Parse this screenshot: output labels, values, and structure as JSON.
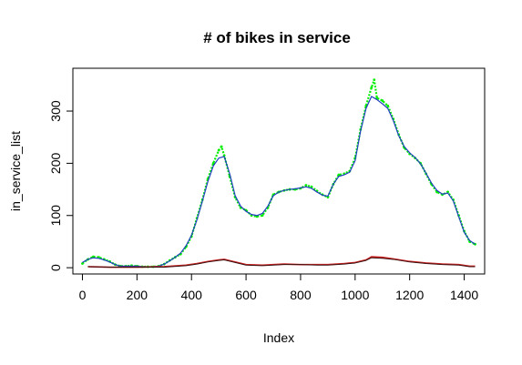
{
  "chart_data": {
    "type": "line",
    "title": "# of bikes in service",
    "xlabel": "Index",
    "ylabel": "in_service_list",
    "xlim": [
      -35,
      1475
    ],
    "ylim": [
      -12,
      382
    ],
    "x_ticks": [
      0,
      200,
      400,
      600,
      800,
      1000,
      1200,
      1400
    ],
    "y_ticks": [
      0,
      100,
      200,
      300
    ],
    "grid": false,
    "legend": "none",
    "colors": {
      "green_series": "#00ee00",
      "blue_series": "#1f3fbf",
      "red_series": "#cc2222",
      "dark_series": "#3a1010",
      "frame": "#000000"
    },
    "series": [
      {
        "role": "raw points (green, noisy)",
        "style": "points",
        "points": [
          [
            0,
            8
          ],
          [
            20,
            16
          ],
          [
            40,
            21
          ],
          [
            60,
            20
          ],
          [
            80,
            16
          ],
          [
            100,
            12
          ],
          [
            120,
            6
          ],
          [
            140,
            3
          ],
          [
            160,
            3
          ],
          [
            180,
            4
          ],
          [
            200,
            3
          ],
          [
            220,
            2
          ],
          [
            240,
            2
          ],
          [
            260,
            2
          ],
          [
            280,
            3
          ],
          [
            300,
            7
          ],
          [
            320,
            14
          ],
          [
            340,
            20
          ],
          [
            360,
            26
          ],
          [
            380,
            40
          ],
          [
            400,
            60
          ],
          [
            420,
            95
          ],
          [
            440,
            130
          ],
          [
            460,
            170
          ],
          [
            480,
            200
          ],
          [
            500,
            225
          ],
          [
            510,
            232
          ],
          [
            520,
            215
          ],
          [
            540,
            175
          ],
          [
            560,
            135
          ],
          [
            580,
            115
          ],
          [
            600,
            110
          ],
          [
            620,
            100
          ],
          [
            640,
            98
          ],
          [
            660,
            100
          ],
          [
            680,
            115
          ],
          [
            700,
            140
          ],
          [
            720,
            145
          ],
          [
            740,
            148
          ],
          [
            760,
            150
          ],
          [
            780,
            150
          ],
          [
            800,
            152
          ],
          [
            820,
            158
          ],
          [
            840,
            155
          ],
          [
            860,
            147
          ],
          [
            880,
            140
          ],
          [
            900,
            135
          ],
          [
            920,
            160
          ],
          [
            940,
            178
          ],
          [
            960,
            180
          ],
          [
            980,
            185
          ],
          [
            1000,
            210
          ],
          [
            1020,
            265
          ],
          [
            1040,
            310
          ],
          [
            1060,
            345
          ],
          [
            1070,
            360
          ],
          [
            1080,
            325
          ],
          [
            1100,
            320
          ],
          [
            1120,
            310
          ],
          [
            1140,
            285
          ],
          [
            1160,
            255
          ],
          [
            1180,
            230
          ],
          [
            1200,
            218
          ],
          [
            1220,
            210
          ],
          [
            1240,
            200
          ],
          [
            1260,
            180
          ],
          [
            1280,
            160
          ],
          [
            1300,
            145
          ],
          [
            1320,
            140
          ],
          [
            1340,
            145
          ],
          [
            1360,
            130
          ],
          [
            1380,
            100
          ],
          [
            1400,
            70
          ],
          [
            1420,
            50
          ],
          [
            1440,
            45
          ]
        ]
      },
      {
        "role": "smoothed (blue)",
        "style": "line",
        "points": [
          [
            0,
            10
          ],
          [
            20,
            16
          ],
          [
            40,
            19
          ],
          [
            60,
            18
          ],
          [
            80,
            15
          ],
          [
            100,
            11
          ],
          [
            120,
            6
          ],
          [
            140,
            3
          ],
          [
            160,
            3
          ],
          [
            180,
            3
          ],
          [
            200,
            3
          ],
          [
            220,
            2
          ],
          [
            240,
            2
          ],
          [
            260,
            2
          ],
          [
            280,
            3
          ],
          [
            300,
            7
          ],
          [
            320,
            13
          ],
          [
            340,
            20
          ],
          [
            360,
            28
          ],
          [
            380,
            42
          ],
          [
            400,
            62
          ],
          [
            420,
            92
          ],
          [
            440,
            128
          ],
          [
            460,
            165
          ],
          [
            480,
            195
          ],
          [
            500,
            210
          ],
          [
            520,
            213
          ],
          [
            540,
            180
          ],
          [
            560,
            138
          ],
          [
            580,
            118
          ],
          [
            600,
            108
          ],
          [
            620,
            102
          ],
          [
            640,
            100
          ],
          [
            660,
            104
          ],
          [
            680,
            118
          ],
          [
            700,
            138
          ],
          [
            720,
            145
          ],
          [
            740,
            148
          ],
          [
            760,
            150
          ],
          [
            780,
            151
          ],
          [
            800,
            153
          ],
          [
            820,
            155
          ],
          [
            840,
            152
          ],
          [
            860,
            145
          ],
          [
            880,
            139
          ],
          [
            900,
            137
          ],
          [
            920,
            160
          ],
          [
            940,
            175
          ],
          [
            960,
            178
          ],
          [
            980,
            183
          ],
          [
            1000,
            205
          ],
          [
            1020,
            262
          ],
          [
            1040,
            305
          ],
          [
            1060,
            328
          ],
          [
            1080,
            322
          ],
          [
            1100,
            314
          ],
          [
            1120,
            305
          ],
          [
            1140,
            282
          ],
          [
            1160,
            253
          ],
          [
            1180,
            232
          ],
          [
            1200,
            220
          ],
          [
            1220,
            211
          ],
          [
            1240,
            199
          ],
          [
            1260,
            181
          ],
          [
            1280,
            162
          ],
          [
            1300,
            148
          ],
          [
            1320,
            141
          ],
          [
            1340,
            143
          ],
          [
            1360,
            128
          ],
          [
            1380,
            98
          ],
          [
            1400,
            68
          ],
          [
            1420,
            52
          ],
          [
            1440,
            45
          ]
        ]
      },
      {
        "role": "lower series (red)",
        "style": "line",
        "points": [
          [
            20,
            2
          ],
          [
            100,
            1
          ],
          [
            200,
            1
          ],
          [
            300,
            2
          ],
          [
            380,
            5
          ],
          [
            420,
            8
          ],
          [
            460,
            12
          ],
          [
            500,
            15
          ],
          [
            520,
            16
          ],
          [
            560,
            11
          ],
          [
            600,
            6
          ],
          [
            660,
            5
          ],
          [
            700,
            6
          ],
          [
            740,
            7
          ],
          [
            800,
            6
          ],
          [
            860,
            6
          ],
          [
            900,
            6
          ],
          [
            960,
            8
          ],
          [
            1000,
            10
          ],
          [
            1040,
            15
          ],
          [
            1060,
            21
          ],
          [
            1100,
            20
          ],
          [
            1140,
            17
          ],
          [
            1200,
            12
          ],
          [
            1260,
            9
          ],
          [
            1320,
            7
          ],
          [
            1380,
            6
          ],
          [
            1420,
            3
          ],
          [
            1440,
            3
          ]
        ]
      },
      {
        "role": "lower series (dark)",
        "style": "line",
        "points": [
          [
            20,
            2
          ],
          [
            100,
            1
          ],
          [
            200,
            1
          ],
          [
            300,
            1
          ],
          [
            380,
            4
          ],
          [
            420,
            7
          ],
          [
            460,
            11
          ],
          [
            500,
            14
          ],
          [
            520,
            15
          ],
          [
            560,
            10
          ],
          [
            600,
            5
          ],
          [
            660,
            4
          ],
          [
            700,
            5
          ],
          [
            740,
            6
          ],
          [
            800,
            6
          ],
          [
            860,
            5
          ],
          [
            900,
            5
          ],
          [
            960,
            7
          ],
          [
            1000,
            9
          ],
          [
            1040,
            14
          ],
          [
            1060,
            19
          ],
          [
            1100,
            18
          ],
          [
            1140,
            16
          ],
          [
            1200,
            11
          ],
          [
            1260,
            8
          ],
          [
            1320,
            6
          ],
          [
            1380,
            5
          ],
          [
            1420,
            2
          ],
          [
            1440,
            2
          ]
        ]
      }
    ]
  }
}
